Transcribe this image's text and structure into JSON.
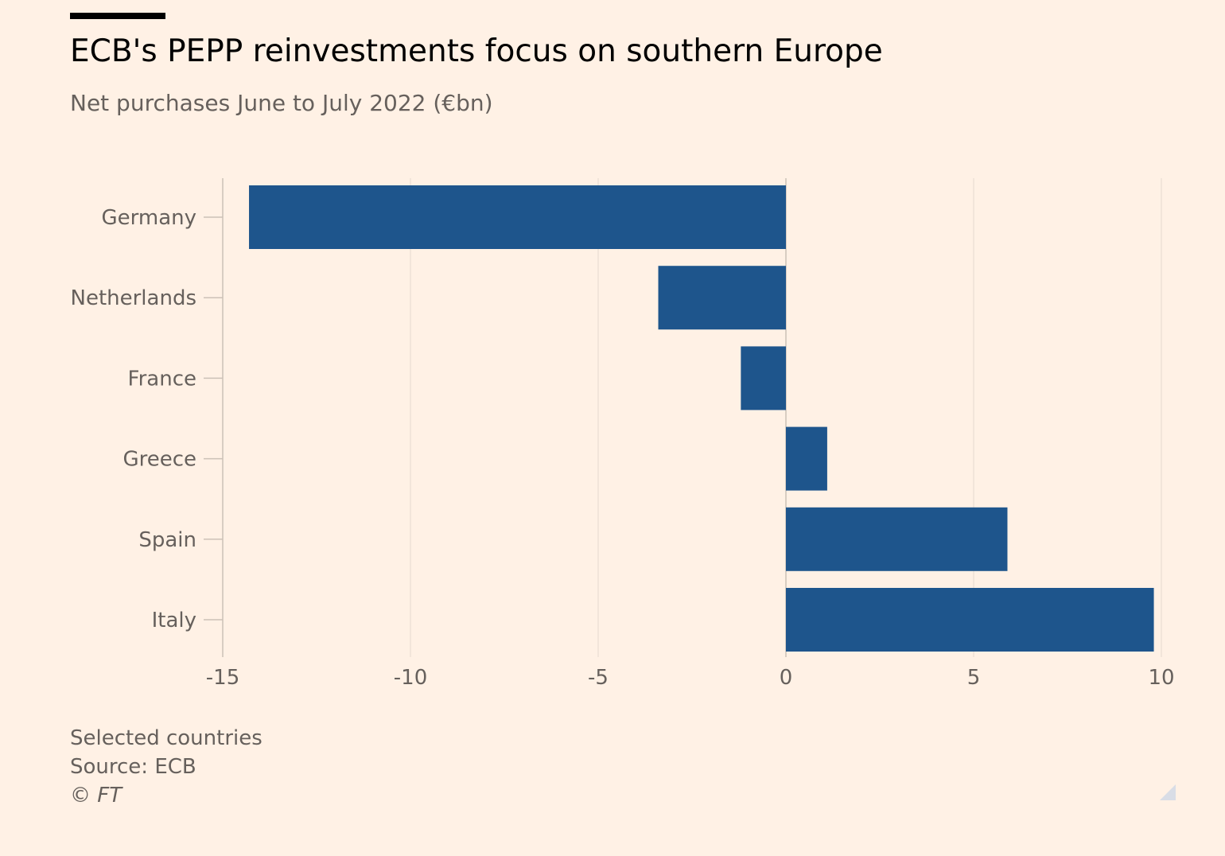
{
  "header": {
    "title": "ECB's PEPP reinvestments focus on southern Europe",
    "subtitle": "Net purchases June to July 2022 (€bn)"
  },
  "chart_data": {
    "type": "bar",
    "orientation": "horizontal",
    "title": "ECB's PEPP reinvestments focus on southern Europe",
    "subtitle": "Net purchases June to July 2022 (€bn)",
    "categories": [
      "Germany",
      "Netherlands",
      "France",
      "Greece",
      "Spain",
      "Italy"
    ],
    "values": [
      -14.3,
      -3.4,
      -1.2,
      1.1,
      5.9,
      9.8
    ],
    "xlim": [
      -15,
      10
    ],
    "xticks": [
      -15,
      -10,
      -5,
      0,
      5,
      10
    ],
    "xtick_labels": [
      "-15",
      "-10",
      "-5",
      "0",
      "5",
      "10"
    ],
    "xlabel": "",
    "ylabel": "",
    "grid": true,
    "legend": "none",
    "bar_color": "#1e558c",
    "gridline_color": "#e6d9ce",
    "axis_color": "#ccc1b7"
  },
  "footer": {
    "note": "Selected countries",
    "source": "Source: ECB",
    "copyright": "© FT"
  },
  "colors": {
    "background": "#fff1e5",
    "title": "#000000",
    "muted_text": "#66605c",
    "bar": "#1e558c"
  }
}
